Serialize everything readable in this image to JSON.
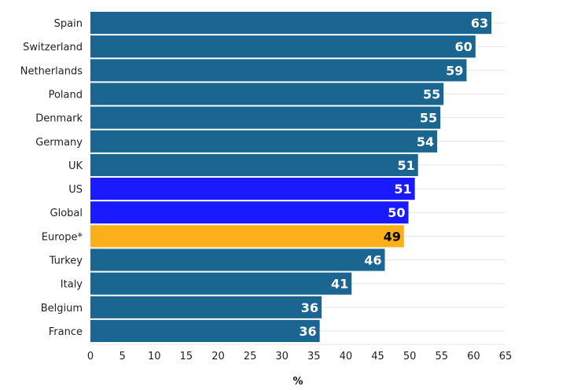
{
  "chart_data": {
    "type": "bar",
    "orientation": "horizontal",
    "title": "",
    "xlabel": "%",
    "ylabel": "",
    "xlim": [
      0,
      65
    ],
    "xticks": [
      0,
      5,
      10,
      15,
      20,
      25,
      30,
      35,
      40,
      45,
      50,
      55,
      60,
      65
    ],
    "grid": true,
    "legend": "none",
    "categories": [
      "Spain",
      "Switzerland",
      "Netherlands",
      "Poland",
      "Denmark",
      "Germany",
      "UK",
      "US",
      "Global",
      "Europe*",
      "Turkey",
      "Italy",
      "Belgium",
      "France"
    ],
    "values": [
      63,
      60,
      59,
      55,
      55,
      54,
      51,
      51,
      50,
      49,
      46,
      41,
      36,
      36
    ],
    "bar_end_values": [
      62.8,
      60.3,
      58.9,
      55.3,
      54.8,
      54.3,
      51.3,
      50.8,
      49.8,
      49.1,
      46.1,
      40.9,
      36.2,
      35.9
    ],
    "colors": {
      "default": "#1b6591",
      "highlight_blue": "#1a1aff",
      "highlight_orange": "#fcaf1b",
      "label_light": "#ffffff",
      "label_dark": "#000000"
    },
    "bar_colors": [
      "default",
      "default",
      "default",
      "default",
      "default",
      "default",
      "default",
      "highlight_blue",
      "highlight_blue",
      "highlight_orange",
      "default",
      "default",
      "default",
      "default"
    ],
    "label_colors": [
      "label_light",
      "label_light",
      "label_light",
      "label_light",
      "label_light",
      "label_light",
      "label_light",
      "label_light",
      "label_light",
      "label_dark",
      "label_light",
      "label_light",
      "label_light",
      "label_light"
    ]
  }
}
